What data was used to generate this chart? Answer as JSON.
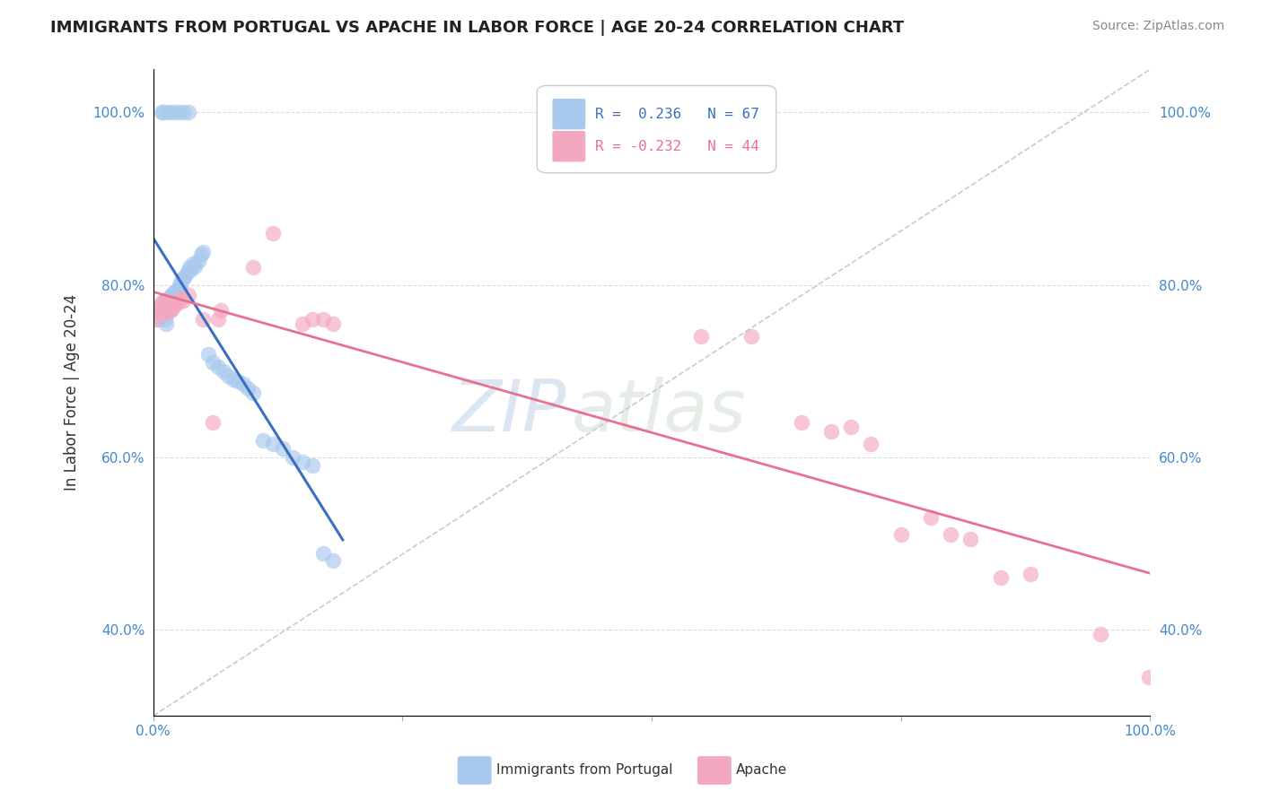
{
  "title": "IMMIGRANTS FROM PORTUGAL VS APACHE IN LABOR FORCE | AGE 20-24 CORRELATION CHART",
  "source": "Source: ZipAtlas.com",
  "ylabel": "In Labor Force | Age 20-24",
  "xlim": [
    0.0,
    1.0
  ],
  "ylim": [
    0.3,
    1.05
  ],
  "yticks": [
    0.4,
    0.6,
    0.8,
    1.0
  ],
  "ytick_labels": [
    "40.0%",
    "60.0%",
    "80.0%",
    "100.0%"
  ],
  "xtick_labels": [
    "0.0%",
    "",
    "100.0%"
  ],
  "legend_label_blue": "Immigrants from Portugal",
  "legend_label_pink": "Apache",
  "blue_color": "#A8C8EE",
  "pink_color": "#F4A8C0",
  "blue_line_color": "#3A6FBF",
  "pink_line_color": "#E87090",
  "diagonal_color": "#BBBBCC",
  "watermark_zip": "ZIP",
  "watermark_atlas": "atlas",
  "blue_x": [
    0.005,
    0.007,
    0.008,
    0.009,
    0.01,
    0.01,
    0.011,
    0.011,
    0.012,
    0.012,
    0.013,
    0.013,
    0.013,
    0.014,
    0.014,
    0.015,
    0.015,
    0.016,
    0.017,
    0.017,
    0.018,
    0.019,
    0.02,
    0.021,
    0.022,
    0.022,
    0.023,
    0.024,
    0.025,
    0.026,
    0.027,
    0.028,
    0.03,
    0.032,
    0.034,
    0.036,
    0.038,
    0.04,
    0.042,
    0.045,
    0.048,
    0.05,
    0.055,
    0.06,
    0.065,
    0.07,
    0.075,
    0.08,
    0.085,
    0.09,
    0.095,
    0.1,
    0.11,
    0.12,
    0.13,
    0.14,
    0.15,
    0.16,
    0.17,
    0.18,
    0.008,
    0.01,
    0.015,
    0.02,
    0.025,
    0.03,
    0.035
  ],
  "blue_y": [
    0.76,
    0.775,
    0.768,
    0.78,
    0.772,
    0.765,
    0.778,
    0.77,
    0.782,
    0.76,
    0.775,
    0.768,
    0.755,
    0.772,
    0.78,
    0.778,
    0.785,
    0.775,
    0.78,
    0.77,
    0.788,
    0.782,
    0.79,
    0.785,
    0.792,
    0.785,
    0.788,
    0.792,
    0.795,
    0.8,
    0.798,
    0.805,
    0.808,
    0.81,
    0.815,
    0.82,
    0.818,
    0.825,
    0.822,
    0.828,
    0.835,
    0.838,
    0.72,
    0.71,
    0.705,
    0.7,
    0.695,
    0.69,
    0.688,
    0.685,
    0.68,
    0.675,
    0.62,
    0.615,
    0.61,
    0.6,
    0.595,
    0.59,
    0.488,
    0.48,
    1.0,
    1.0,
    1.0,
    1.0,
    1.0,
    1.0,
    1.0
  ],
  "pink_x": [
    0.003,
    0.005,
    0.006,
    0.007,
    0.008,
    0.009,
    0.01,
    0.011,
    0.012,
    0.013,
    0.014,
    0.015,
    0.016,
    0.018,
    0.02,
    0.022,
    0.025,
    0.028,
    0.03,
    0.035,
    0.05,
    0.06,
    0.065,
    0.068,
    0.1,
    0.12,
    0.15,
    0.16,
    0.17,
    0.18,
    0.55,
    0.6,
    0.65,
    0.68,
    0.7,
    0.72,
    0.75,
    0.78,
    0.8,
    0.82,
    0.85,
    0.88,
    0.95,
    0.999
  ],
  "pink_y": [
    0.76,
    0.77,
    0.775,
    0.768,
    0.78,
    0.772,
    0.775,
    0.778,
    0.77,
    0.782,
    0.768,
    0.775,
    0.78,
    0.772,
    0.775,
    0.778,
    0.78,
    0.785,
    0.782,
    0.788,
    0.76,
    0.64,
    0.76,
    0.77,
    0.82,
    0.86,
    0.755,
    0.76,
    0.76,
    0.755,
    0.74,
    0.74,
    0.64,
    0.63,
    0.635,
    0.615,
    0.51,
    0.53,
    0.51,
    0.505,
    0.46,
    0.465,
    0.395,
    0.345
  ]
}
